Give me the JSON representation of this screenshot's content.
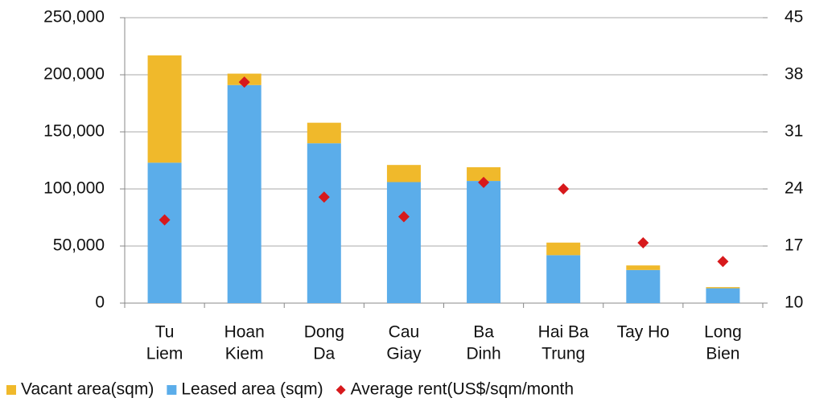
{
  "chart_data": {
    "type": "bar",
    "categories": [
      [
        "Tu",
        "Liem"
      ],
      [
        "Hoan",
        "Kiem"
      ],
      [
        "Dong",
        "Da"
      ],
      [
        "Cau",
        "Giay"
      ],
      [
        "Ba",
        "Dinh"
      ],
      [
        "Hai Ba",
        "Trung"
      ],
      [
        "Tay Ho"
      ],
      [
        "Long",
        "Bien"
      ]
    ],
    "series": [
      {
        "name": "Vacant area(sqm)",
        "color": "#f0b92b",
        "type": "bar",
        "stack": 1,
        "values": [
          94000,
          10000,
          18000,
          15000,
          12000,
          11000,
          4000,
          1000
        ]
      },
      {
        "name": "Leased area (sqm)",
        "color": "#5badea",
        "type": "bar",
        "stack": 0,
        "values": [
          123000,
          191000,
          140000,
          106000,
          107000,
          42000,
          29000,
          13000
        ]
      },
      {
        "name": "Average rent(US$/sqm/month",
        "color": "#d7191c",
        "type": "scatter",
        "axis": "y2",
        "values": [
          20.2,
          37.1,
          23.0,
          20.6,
          24.8,
          24.0,
          17.4,
          15.1
        ]
      }
    ],
    "ylim": [
      0,
      250000
    ],
    "yticks": [
      0,
      {
        "value": 50000,
        "label": "50,000"
      },
      {
        "value": 100000,
        "label": "100,000"
      },
      {
        "value": 150000,
        "label": "150,000"
      },
      {
        "value": 200000,
        "label": "200,000"
      },
      {
        "value": 250000,
        "label": "250,000"
      }
    ],
    "y2lim": [
      10,
      45
    ],
    "y2ticks": [
      10,
      17,
      24,
      31,
      38,
      45
    ],
    "grid": true,
    "legend": "bottom"
  }
}
